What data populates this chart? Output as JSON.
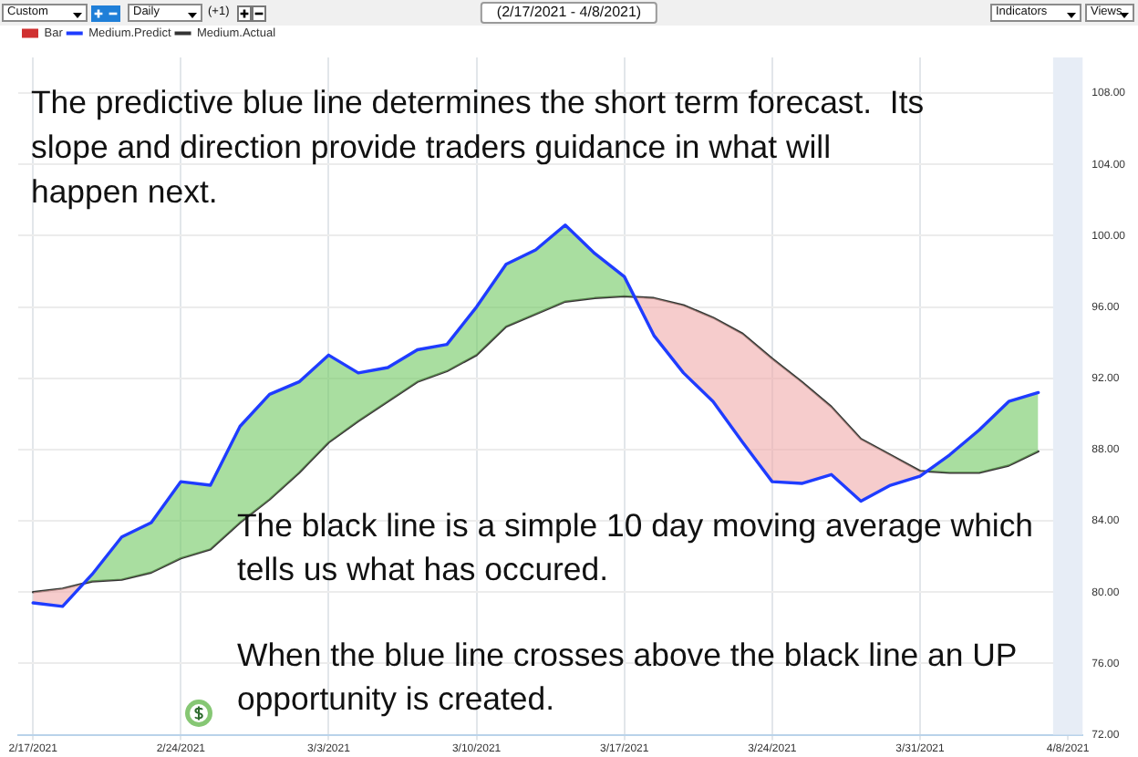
{
  "chart_data": {
    "type": "line",
    "title": "(2/17/2021 - 4/8/2021)",
    "categories": [
      "2/17/2021",
      null,
      null,
      null,
      null,
      "2/24/2021",
      null,
      null,
      null,
      null,
      "3/3/2021",
      null,
      null,
      null,
      null,
      "3/10/2021",
      null,
      null,
      null,
      null,
      "3/17/2021",
      null,
      null,
      null,
      null,
      "3/24/2021",
      null,
      null,
      null,
      null,
      "3/31/2021",
      null,
      null,
      null,
      null,
      "4/8/2021"
    ],
    "series": [
      {
        "name": "Bar",
        "type": "bar",
        "color": "#d03030",
        "values": [
          null,
          null,
          null,
          null,
          null,
          null,
          null,
          null,
          null,
          null,
          null,
          null,
          null,
          null,
          null,
          null,
          null,
          null,
          null,
          null,
          null,
          null,
          null,
          null,
          null,
          null,
          null,
          null,
          null,
          null,
          null,
          null,
          null,
          null,
          null,
          null
        ]
      },
      {
        "name": "Medium.Predict",
        "color": "#1f3cff",
        "values": [
          79.4,
          79.2,
          81.0,
          83.1,
          83.9,
          86.2,
          86.0,
          89.3,
          91.1,
          91.8,
          93.3,
          92.3,
          92.6,
          93.6,
          93.9,
          96.0,
          98.4,
          99.2,
          100.6,
          99.0,
          97.7,
          94.4,
          92.3,
          90.7,
          88.4,
          86.2,
          86.1,
          86.6,
          85.1,
          86.0,
          86.5,
          87.7,
          89.1,
          90.7,
          91.2,
          null
        ]
      },
      {
        "name": "Medium.Actual",
        "color": "#333333",
        "values": [
          80.0,
          80.2,
          80.6,
          80.7,
          81.1,
          81.9,
          82.4,
          83.9,
          85.2,
          86.7,
          88.4,
          89.6,
          90.7,
          91.8,
          92.4,
          93.3,
          94.9,
          95.6,
          96.3,
          96.5,
          96.6,
          96.5,
          96.1,
          95.4,
          94.5,
          93.1,
          91.8,
          90.4,
          88.6,
          87.7,
          86.8,
          86.7,
          86.7,
          87.1,
          87.9,
          null
        ]
      }
    ],
    "ylim": [
      72,
      110
    ],
    "yticks": [
      {
        "value": 72,
        "label": "72.00"
      },
      {
        "value": 76,
        "label": "76.00"
      },
      {
        "value": 80,
        "label": "80.00"
      },
      {
        "value": 84,
        "label": "84.00"
      },
      {
        "value": 88,
        "label": "88.00"
      },
      {
        "value": 92,
        "label": "92.00"
      },
      {
        "value": 96,
        "label": "96.00"
      },
      {
        "value": 100,
        "label": "100.00"
      },
      {
        "value": 104,
        "label": "104.00"
      },
      {
        "value": 108,
        "label": "108.00"
      }
    ],
    "grid": true,
    "legend": "top left",
    "marker": "none",
    "bands": [
      {
        "axis": "x",
        "from": "4/8/2021",
        "to": "4/8/2021",
        "color": "#e7edf6"
      }
    ],
    "annotations": [
      "The predictive blue line determines the short term forecast.  Its\nslope and direction provide traders guidance in what will\nhappen next.",
      "The black line is a simple 10 day moving average which\ntells us what has occured.",
      "When the blue line crosses above the black line an UP\nopportunity is created.",
      "Custom",
      "Daily",
      "(+1)",
      "Indicators",
      "Views"
    ]
  }
}
